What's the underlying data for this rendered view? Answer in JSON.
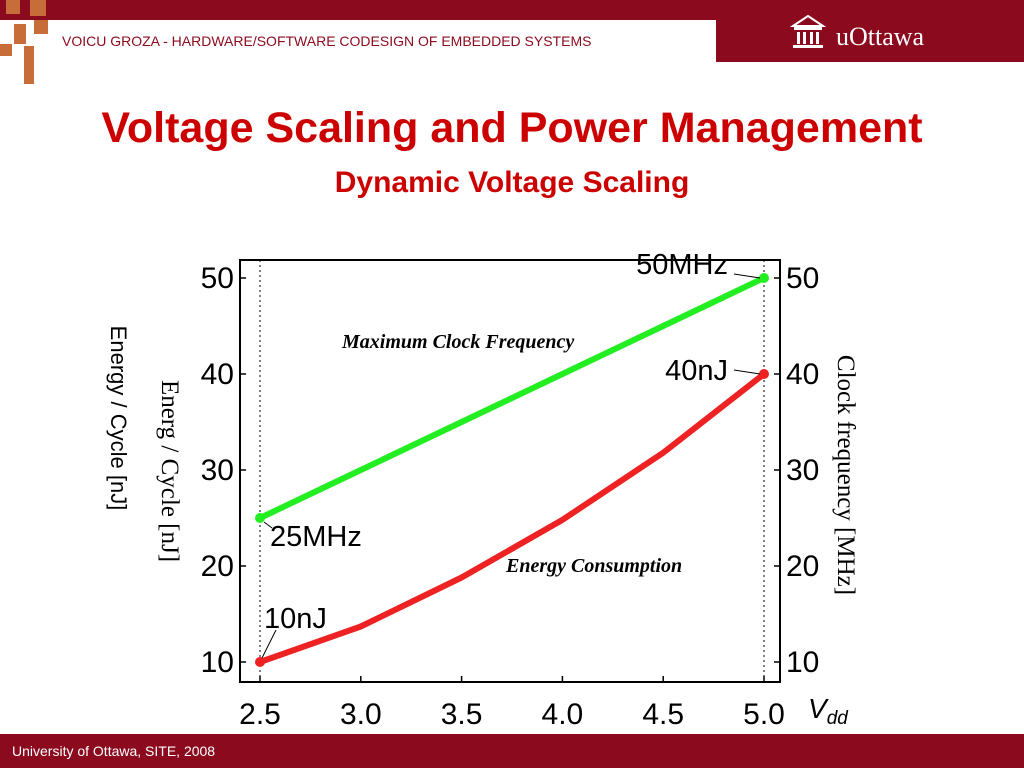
{
  "header": {
    "text": "VOICU GROZA - HARDWARE/SOFTWARE CODESIGN OF EMBEDDED SYSTEMS",
    "logo_text": "uOttawa"
  },
  "slide": {
    "title": "Voltage Scaling and Power Management",
    "subtitle": "Dynamic Voltage Scaling",
    "outer_ylabel": "Energy / Cycle [nJ]"
  },
  "footer": {
    "text": "University of Ottawa, SITE, 2008"
  },
  "colors": {
    "brand": "#8b0a1e",
    "title": "#cc0000",
    "frequency_line": "#22ee22",
    "energy_line": "#ee2222"
  },
  "chart_data": {
    "type": "line",
    "xlabel": "V",
    "xlabel_subscript": "dd",
    "ylabel_left": "Energ / Cycle   [nJ]",
    "ylabel_right": "Clock frequency   [MHz]",
    "xlim": [
      2.5,
      5.0
    ],
    "ylim": [
      10,
      50
    ],
    "xticks": [
      "2.5",
      "3.0",
      "3.5",
      "4.0",
      "4.5",
      "5.0"
    ],
    "yticks": [
      "10",
      "20",
      "30",
      "40",
      "50"
    ],
    "grid": false,
    "series": [
      {
        "name": "Maximum Clock Frequency",
        "axis": "right",
        "x": [
          2.5,
          3.0,
          3.5,
          4.0,
          4.5,
          5.0
        ],
        "values": [
          25,
          30,
          35,
          40,
          45,
          50
        ]
      },
      {
        "name": "Energy Consumption",
        "axis": "left",
        "x": [
          2.5,
          3.0,
          3.5,
          4.0,
          4.5,
          5.0
        ],
        "values": [
          10,
          13.7,
          18.8,
          24.8,
          31.8,
          40
        ]
      }
    ],
    "annotations": [
      {
        "text": "50MHz",
        "x": 5.0,
        "y": 50
      },
      {
        "text": "40nJ",
        "x": 5.0,
        "y": 40
      },
      {
        "text": "25MHz",
        "x": 2.5,
        "y": 25
      },
      {
        "text": "10nJ",
        "x": 2.5,
        "y": 10
      }
    ]
  }
}
